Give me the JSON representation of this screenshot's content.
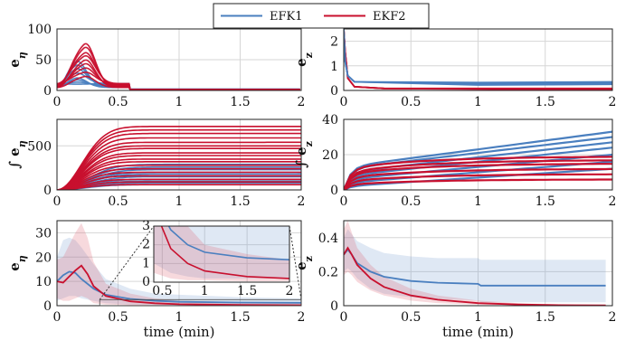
{
  "legend": {
    "entries": [
      {
        "label": "EFK1",
        "color": "#4a7fbf"
      },
      {
        "label": "EKF2",
        "color": "#c8102e"
      }
    ]
  },
  "chart_data": [
    {
      "type": "line",
      "ylabel": "e_η",
      "ylabel_sym": "η",
      "xlim": [
        0,
        2
      ],
      "ylim": [
        0,
        100
      ],
      "xticks": [
        "0",
        "0.5",
        "1",
        "1.5",
        "2"
      ],
      "yticks": [
        "0",
        "50",
        "100"
      ],
      "grid": true,
      "series": [
        {
          "name": "EFK1",
          "peaks": [
            52,
            45,
            38,
            30,
            22,
            18,
            14,
            10
          ],
          "peak_time": 0.15,
          "final": 1
        },
        {
          "name": "EKF2",
          "peaks": [
            85,
            78,
            68,
            62,
            55,
            48,
            40,
            32,
            25
          ],
          "peak_time": 0.22,
          "final": 0.5
        }
      ]
    },
    {
      "type": "line",
      "ylabel": "e_z",
      "xlim": [
        0,
        2
      ],
      "ylim": [
        0,
        2.5
      ],
      "xticks": [
        "0",
        "0.5",
        "1",
        "1.5",
        "2"
      ],
      "yticks": [
        "0",
        "1",
        "2"
      ],
      "grid": true,
      "series": [
        {
          "name": "EFK1",
          "initial": 2.5,
          "final": [
            0.25,
            0.3,
            0.35
          ]
        },
        {
          "name": "EKF2",
          "initial": 2.5,
          "final": [
            0.02,
            0.05,
            0.08
          ]
        }
      ]
    },
    {
      "type": "line",
      "ylabel": "∫ e_η",
      "xlim": [
        0,
        2
      ],
      "ylim": [
        0,
        800
      ],
      "xticks": [
        "0",
        "0.5",
        "1",
        "1.5",
        "2"
      ],
      "yticks": [
        "0",
        "500"
      ],
      "grid": true,
      "series": [
        {
          "name": "EFK1",
          "finals": [
            290,
            260,
            230,
            200,
            180,
            150,
            120,
            100,
            80,
            60
          ]
        },
        {
          "name": "EKF2",
          "finals": [
            720,
            680,
            640,
            590,
            540,
            500,
            470,
            420,
            390,
            350,
            320,
            280,
            240,
            200,
            160,
            120,
            90,
            60
          ]
        }
      ]
    },
    {
      "type": "line",
      "ylabel": "∫ e_z",
      "xlim": [
        0,
        2
      ],
      "ylim": [
        0,
        40
      ],
      "xticks": [
        "0",
        "0.5",
        "1",
        "1.5",
        "2"
      ],
      "yticks": [
        "0",
        "20",
        "40"
      ],
      "grid": true,
      "series": [
        {
          "name": "EFK1",
          "starts": [
            13,
            12,
            10,
            8,
            6,
            4,
            2
          ],
          "ends": [
            33,
            30,
            27,
            24,
            20,
            16,
            12
          ]
        },
        {
          "name": "EKF2",
          "starts": [
            12,
            10,
            9,
            7,
            5,
            3
          ],
          "ends": [
            19,
            17,
            15,
            12,
            9,
            6
          ]
        }
      ]
    },
    {
      "type": "line",
      "ylabel": "e_η",
      "xlabel": "time (min)",
      "xlim": [
        0,
        2
      ],
      "ylim": [
        0,
        35
      ],
      "xticks": [
        "0",
        "0.5",
        "1",
        "1.5",
        "2"
      ],
      "yticks": [
        "0",
        "10",
        "20",
        "30"
      ],
      "grid": true,
      "series": [
        {
          "name": "EFK1",
          "x": [
            0,
            0.05,
            0.1,
            0.15,
            0.2,
            0.3,
            0.4,
            0.6,
            0.8,
            1.0,
            1.5,
            2.0
          ],
          "y": [
            10,
            12.5,
            14,
            13.5,
            11,
            7,
            4.5,
            2.8,
            2.0,
            1.6,
            1.3,
            1.2
          ],
          "band_hi": [
            20,
            27,
            28,
            27,
            24,
            17,
            11,
            7,
            5,
            4.5,
            3.5,
            3
          ],
          "band_lo": [
            2,
            3,
            4,
            4,
            3,
            2,
            1,
            0.5,
            0.3,
            0.2,
            0.2,
            0.2
          ]
        },
        {
          "name": "EKF2",
          "x": [
            0,
            0.05,
            0.1,
            0.15,
            0.2,
            0.25,
            0.3,
            0.4,
            0.6,
            0.8,
            1.0,
            1.5,
            2.0
          ],
          "y": [
            10,
            9.5,
            12,
            14.5,
            16.5,
            13,
            8,
            4,
            1.8,
            1.0,
            0.6,
            0.3,
            0.2
          ],
          "band_hi": [
            19,
            20,
            25,
            30,
            34,
            28,
            18,
            9,
            5,
            3,
            2,
            1.5,
            1.2
          ],
          "band_lo": [
            3,
            2,
            2,
            3,
            4,
            3,
            1,
            0.5,
            0.2,
            0.1,
            0.1,
            0.05,
            0.05
          ]
        }
      ],
      "inset": {
        "xlim": [
          0.4,
          2.0
        ],
        "ylim": [
          0,
          3
        ],
        "xticks": [
          "0.5",
          "1",
          "1.5",
          "2"
        ],
        "yticks": [
          "0",
          "1",
          "2",
          "3"
        ]
      }
    },
    {
      "type": "line",
      "ylabel": "e_z",
      "xlabel": "time (min)",
      "xlim": [
        0,
        2
      ],
      "ylim": [
        0,
        0.5
      ],
      "xticks": [
        "0",
        "0.5",
        "1",
        "1.5",
        "2"
      ],
      "yticks": [
        "0",
        "0.2",
        "0.4"
      ],
      "grid": true,
      "series": [
        {
          "name": "EFK1",
          "x": [
            0,
            0.03,
            0.06,
            0.1,
            0.2,
            0.3,
            0.5,
            0.7,
            1.0,
            1.02,
            1.5,
            1.95
          ],
          "y": [
            0.3,
            0.33,
            0.3,
            0.25,
            0.2,
            0.17,
            0.145,
            0.135,
            0.128,
            0.118,
            0.118,
            0.118
          ],
          "band_hi": [
            0.4,
            0.45,
            0.42,
            0.38,
            0.34,
            0.31,
            0.29,
            0.28,
            0.28,
            0.27,
            0.27,
            0.27
          ],
          "band_lo": [
            0.2,
            0.22,
            0.2,
            0.16,
            0.1,
            0.07,
            0.05,
            0.04,
            0.03,
            0.02,
            0.02,
            0.02
          ]
        },
        {
          "name": "EKF2",
          "x": [
            0,
            0.03,
            0.06,
            0.1,
            0.2,
            0.3,
            0.5,
            0.7,
            1.0,
            1.3,
            1.6,
            1.95
          ],
          "y": [
            0.3,
            0.34,
            0.3,
            0.24,
            0.16,
            0.11,
            0.06,
            0.035,
            0.015,
            0.007,
            0.003,
            0.002
          ],
          "band_hi": [
            0.45,
            0.5,
            0.43,
            0.34,
            0.24,
            0.17,
            0.1,
            0.06,
            0.03,
            0.015,
            0.008,
            0.005
          ],
          "band_lo": [
            0.18,
            0.2,
            0.18,
            0.14,
            0.09,
            0.06,
            0.03,
            0.015,
            0.006,
            0.003,
            0.001,
            0.001
          ]
        }
      ]
    }
  ]
}
